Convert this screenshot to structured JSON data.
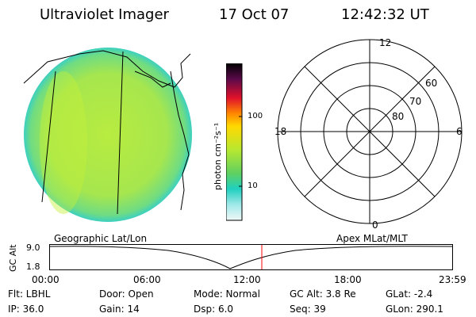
{
  "header": {
    "title": "Ultraviolet Imager",
    "date": "17 Oct 07",
    "time": "12:42:32 UT"
  },
  "colorbar": {
    "unit_label": "photon cm⁻²s⁻¹",
    "ticks": [
      "100",
      "10"
    ],
    "scale": "log"
  },
  "polar_plot": {
    "mlt_labels": {
      "top": "12",
      "left": "18",
      "right": "6",
      "bottom": "0"
    },
    "lat_labels": [
      "60",
      "70",
      "80"
    ]
  },
  "labels": {
    "geo": "Geographic Lat/Lon",
    "apex": "Apex MLat/MLT"
  },
  "altitude_plot": {
    "axis_label": "GC Alt",
    "y_ticks": [
      "9.0",
      "1.8"
    ],
    "x_ticks": [
      "00:00",
      "06:00",
      "12:00",
      "18:00",
      "23:59"
    ],
    "current_marker_time": "12:42:32"
  },
  "status": {
    "row1": {
      "flt": "Flt: LBHL",
      "door": "Door: Open",
      "mode": "Mode: Normal",
      "gc_alt": "GC Alt: 3.8 Re",
      "glat": "GLat:  -2.4"
    },
    "row2": {
      "ip": "IP: 36.0",
      "gain": "Gain: 14",
      "dsp": "Dsp:     6.0",
      "seq": "Seq: 39",
      "glon": "GLon: 290.1"
    }
  },
  "colors": {
    "background": "#ffffff",
    "marker": "#ff0000",
    "disk_main": "#a8e84a",
    "disk_edge": "#50d8a8"
  }
}
